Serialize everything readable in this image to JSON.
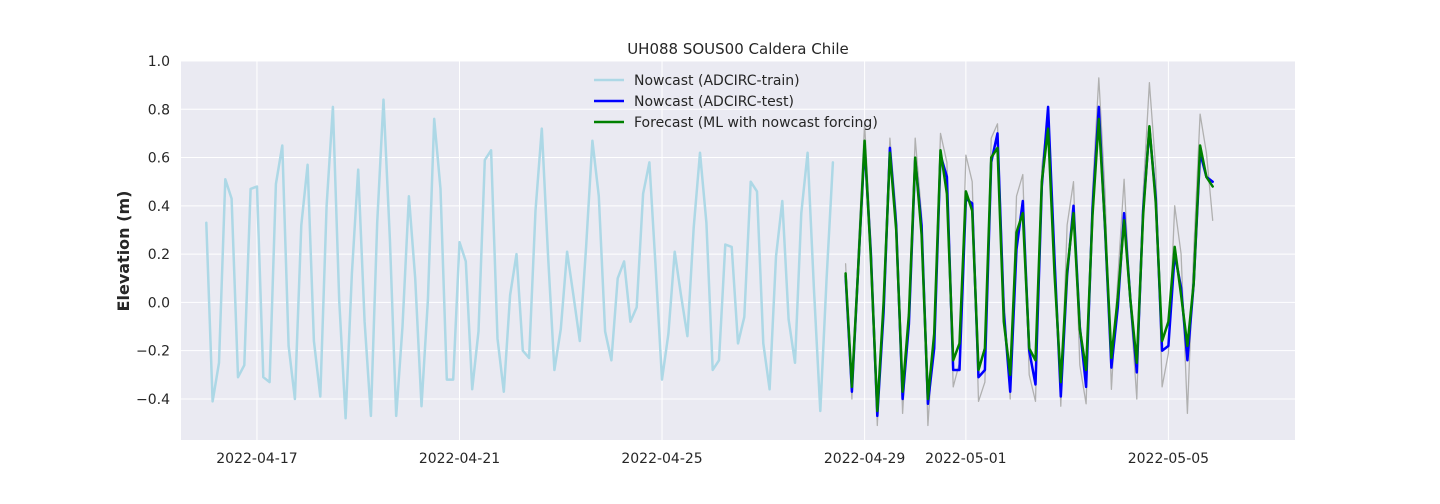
{
  "chart_data": {
    "type": "line",
    "title": "UH088 SOUS00 Caldera Chile",
    "xlabel": "",
    "ylabel": "Elevation (m)",
    "xlim": [
      "2022-04-15T12:00",
      "2022-05-07T12:00"
    ],
    "ylim": [
      -0.57,
      1.0
    ],
    "x_tick_labels": [
      "2022-04-17",
      "2022-04-21",
      "2022-04-25",
      "2022-04-29",
      "2022-05-01",
      "2022-05-05"
    ],
    "y_tick_labels": [
      "−0.4",
      "−0.2",
      "0.0",
      "0.2",
      "0.4",
      "0.6",
      "0.8",
      "1.0"
    ],
    "grid": true,
    "legend_position": "top-center",
    "series": [
      {
        "name": "Nowcast (ADCIRC-train)",
        "color": "#add8e6",
        "in_legend": true,
        "x": [
          "2022-04-16T00:00",
          "2022-04-16T03:00",
          "2022-04-16T06:00",
          "2022-04-16T09:00",
          "2022-04-16T12:00",
          "2022-04-16T15:00",
          "2022-04-16T18:00",
          "2022-04-16T21:00",
          "2022-04-17T00:00",
          "2022-04-17T03:00",
          "2022-04-17T06:00",
          "2022-04-17T09:00",
          "2022-04-17T12:00",
          "2022-04-17T15:00",
          "2022-04-17T18:00",
          "2022-04-17T21:00",
          "2022-04-18T00:00",
          "2022-04-18T03:00",
          "2022-04-18T06:00",
          "2022-04-18T09:00",
          "2022-04-18T12:00",
          "2022-04-18T15:00",
          "2022-04-18T18:00",
          "2022-04-18T21:00",
          "2022-04-19T00:00",
          "2022-04-19T03:00",
          "2022-04-19T06:00",
          "2022-04-19T09:00",
          "2022-04-19T12:00",
          "2022-04-19T15:00",
          "2022-04-19T18:00",
          "2022-04-19T21:00",
          "2022-04-20T00:00",
          "2022-04-20T03:00",
          "2022-04-20T06:00",
          "2022-04-20T09:00",
          "2022-04-20T12:00",
          "2022-04-20T15:00",
          "2022-04-20T18:00",
          "2022-04-20T21:00",
          "2022-04-21T00:00",
          "2022-04-21T03:00",
          "2022-04-21T06:00",
          "2022-04-21T09:00",
          "2022-04-21T12:00",
          "2022-04-21T15:00",
          "2022-04-21T18:00",
          "2022-04-21T21:00",
          "2022-04-22T00:00",
          "2022-04-22T03:00",
          "2022-04-22T06:00",
          "2022-04-22T09:00",
          "2022-04-22T12:00",
          "2022-04-22T15:00",
          "2022-04-22T18:00",
          "2022-04-22T21:00",
          "2022-04-23T00:00",
          "2022-04-23T03:00",
          "2022-04-23T06:00",
          "2022-04-23T09:00",
          "2022-04-23T12:00",
          "2022-04-23T15:00",
          "2022-04-23T18:00",
          "2022-04-23T21:00",
          "2022-04-24T00:00",
          "2022-04-24T03:00",
          "2022-04-24T06:00",
          "2022-04-24T09:00",
          "2022-04-24T12:00",
          "2022-04-24T15:00",
          "2022-04-24T18:00",
          "2022-04-24T21:00",
          "2022-04-25T00:00",
          "2022-04-25T03:00",
          "2022-04-25T06:00",
          "2022-04-25T09:00",
          "2022-04-25T12:00",
          "2022-04-25T15:00",
          "2022-04-25T18:00",
          "2022-04-25T21:00",
          "2022-04-26T00:00",
          "2022-04-26T03:00",
          "2022-04-26T06:00",
          "2022-04-26T09:00",
          "2022-04-26T12:00",
          "2022-04-26T15:00",
          "2022-04-26T18:00",
          "2022-04-26T21:00",
          "2022-04-27T00:00",
          "2022-04-27T03:00",
          "2022-04-27T06:00",
          "2022-04-27T09:00",
          "2022-04-27T12:00",
          "2022-04-27T15:00",
          "2022-04-27T18:00",
          "2022-04-27T21:00",
          "2022-04-28T00:00",
          "2022-04-28T03:00",
          "2022-04-28T06:00",
          "2022-04-28T09:00"
        ],
        "y": [
          0.33,
          -0.41,
          -0.25,
          0.51,
          0.43,
          -0.31,
          -0.26,
          0.47,
          0.48,
          -0.31,
          -0.33,
          0.49,
          0.65,
          -0.18,
          -0.4,
          0.32,
          0.57,
          -0.16,
          -0.39,
          0.4,
          0.81,
          0.01,
          -0.48,
          0.12,
          0.55,
          -0.08,
          -0.47,
          0.33,
          0.84,
          0.26,
          -0.47,
          -0.1,
          0.44,
          0.1,
          -0.43,
          0.01,
          0.76,
          0.47,
          -0.32,
          -0.32,
          0.25,
          0.17,
          -0.36,
          -0.12,
          0.59,
          0.63,
          -0.15,
          -0.37,
          0.03,
          0.2,
          -0.2,
          -0.23,
          0.38,
          0.72,
          0.19,
          -0.28,
          -0.11,
          0.21,
          0.03,
          -0.16,
          0.23,
          0.67,
          0.44,
          -0.12,
          -0.24,
          0.1,
          0.17,
          -0.08,
          -0.02,
          0.45,
          0.58,
          0.14,
          -0.32,
          -0.13,
          0.21,
          0.03,
          -0.14,
          0.31,
          0.62,
          0.33,
          -0.28,
          -0.24,
          0.24,
          0.23,
          -0.17,
          -0.06,
          0.5,
          0.46,
          -0.17,
          -0.36,
          0.19,
          0.42,
          -0.07,
          -0.25,
          0.37,
          0.62,
          0.05,
          -0.45,
          0.1,
          0.58
        ]
      },
      {
        "name": "Nowcast (ADCIRC-test)",
        "color": "#0000ff",
        "in_legend": true,
        "x": [
          "2022-04-28T15:00",
          "2022-04-28T18:00",
          "2022-04-28T21:00",
          "2022-04-29T00:00",
          "2022-04-29T03:00",
          "2022-04-29T06:00",
          "2022-04-29T09:00",
          "2022-04-29T12:00",
          "2022-04-29T15:00",
          "2022-04-29T18:00",
          "2022-04-29T21:00",
          "2022-04-30T00:00",
          "2022-04-30T03:00",
          "2022-04-30T06:00",
          "2022-04-30T09:00",
          "2022-04-30T12:00",
          "2022-04-30T15:00",
          "2022-04-30T18:00",
          "2022-04-30T21:00",
          "2022-05-01T00:00",
          "2022-05-01T03:00",
          "2022-05-01T06:00",
          "2022-05-01T09:00",
          "2022-05-01T12:00",
          "2022-05-01T15:00",
          "2022-05-01T18:00",
          "2022-05-01T21:00",
          "2022-05-02T00:00",
          "2022-05-02T03:00",
          "2022-05-02T06:00",
          "2022-05-02T09:00",
          "2022-05-02T12:00",
          "2022-05-02T15:00",
          "2022-05-02T18:00",
          "2022-05-02T21:00",
          "2022-05-03T00:00",
          "2022-05-03T03:00",
          "2022-05-03T06:00",
          "2022-05-03T09:00",
          "2022-05-03T12:00",
          "2022-05-03T15:00",
          "2022-05-03T18:00",
          "2022-05-03T21:00",
          "2022-05-04T00:00",
          "2022-05-04T03:00",
          "2022-05-04T06:00",
          "2022-05-04T09:00",
          "2022-05-04T12:00",
          "2022-05-04T15:00",
          "2022-05-04T18:00",
          "2022-05-04T21:00",
          "2022-05-05T00:00",
          "2022-05-05T03:00",
          "2022-05-05T06:00",
          "2022-05-05T09:00",
          "2022-05-05T12:00",
          "2022-05-05T15:00",
          "2022-05-05T18:00",
          "2022-05-05T21:00"
        ],
        "y": [
          0.11,
          -0.37,
          0.15,
          0.65,
          0.2,
          -0.47,
          -0.04,
          0.64,
          0.32,
          -0.4,
          -0.09,
          0.59,
          0.32,
          -0.42,
          -0.19,
          0.61,
          0.52,
          -0.28,
          -0.28,
          0.43,
          0.41,
          -0.31,
          -0.28,
          0.58,
          0.7,
          -0.04,
          -0.37,
          0.22,
          0.42,
          -0.2,
          -0.34,
          0.48,
          0.81,
          0.18,
          -0.39,
          0.11,
          0.4,
          -0.1,
          -0.35,
          0.39,
          0.81,
          0.3,
          -0.27,
          -0.02,
          0.37,
          0.01,
          -0.29,
          0.38,
          0.72,
          0.43,
          -0.2,
          -0.18,
          0.2,
          0.06,
          -0.24,
          0.08,
          0.62,
          0.52,
          0.5
        ]
      },
      {
        "name": "Forecast (ML with nowcast forcing)",
        "color": "#008000",
        "in_legend": true,
        "x": [
          "2022-04-28T15:00",
          "2022-04-28T18:00",
          "2022-04-28T21:00",
          "2022-04-29T00:00",
          "2022-04-29T03:00",
          "2022-04-29T06:00",
          "2022-04-29T09:00",
          "2022-04-29T12:00",
          "2022-04-29T15:00",
          "2022-04-29T18:00",
          "2022-04-29T21:00",
          "2022-04-30T00:00",
          "2022-04-30T03:00",
          "2022-04-30T06:00",
          "2022-04-30T09:00",
          "2022-04-30T12:00",
          "2022-04-30T15:00",
          "2022-04-30T18:00",
          "2022-04-30T21:00",
          "2022-05-01T00:00",
          "2022-05-01T03:00",
          "2022-05-01T06:00",
          "2022-05-01T09:00",
          "2022-05-01T12:00",
          "2022-05-01T15:00",
          "2022-05-01T18:00",
          "2022-05-01T21:00",
          "2022-05-02T00:00",
          "2022-05-02T03:00",
          "2022-05-02T06:00",
          "2022-05-02T09:00",
          "2022-05-02T12:00",
          "2022-05-02T15:00",
          "2022-05-02T18:00",
          "2022-05-02T21:00",
          "2022-05-03T00:00",
          "2022-05-03T03:00",
          "2022-05-03T06:00",
          "2022-05-03T09:00",
          "2022-05-03T12:00",
          "2022-05-03T15:00",
          "2022-05-03T18:00",
          "2022-05-03T21:00",
          "2022-05-04T00:00",
          "2022-05-04T03:00",
          "2022-05-04T06:00",
          "2022-05-04T09:00",
          "2022-05-04T12:00",
          "2022-05-04T15:00",
          "2022-05-04T18:00",
          "2022-05-04T21:00",
          "2022-05-05T00:00",
          "2022-05-05T03:00",
          "2022-05-05T06:00",
          "2022-05-05T09:00",
          "2022-05-05T12:00",
          "2022-05-05T15:00",
          "2022-05-05T18:00",
          "2022-05-05T21:00"
        ],
        "y": [
          0.12,
          -0.35,
          0.15,
          0.67,
          0.18,
          -0.45,
          0.0,
          0.62,
          0.3,
          -0.37,
          -0.05,
          0.6,
          0.28,
          -0.4,
          -0.13,
          0.63,
          0.45,
          -0.24,
          -0.17,
          0.46,
          0.38,
          -0.28,
          -0.19,
          0.6,
          0.64,
          -0.08,
          -0.3,
          0.29,
          0.37,
          -0.19,
          -0.24,
          0.5,
          0.72,
          0.12,
          -0.33,
          0.13,
          0.37,
          -0.11,
          -0.28,
          0.36,
          0.76,
          0.31,
          -0.23,
          0.02,
          0.34,
          0.01,
          -0.25,
          0.36,
          0.73,
          0.41,
          -0.16,
          -0.08,
          0.23,
          0.03,
          -0.18,
          0.08,
          0.65,
          0.52,
          0.48
        ]
      },
      {
        "name": "",
        "color": "#b0b0b0",
        "in_legend": false,
        "x": [
          "2022-04-28T15:00",
          "2022-04-28T18:00",
          "2022-04-28T21:00",
          "2022-04-29T00:00",
          "2022-04-29T03:00",
          "2022-04-29T06:00",
          "2022-04-29T09:00",
          "2022-04-29T12:00",
          "2022-04-29T15:00",
          "2022-04-29T18:00",
          "2022-04-29T21:00",
          "2022-04-30T00:00",
          "2022-04-30T03:00",
          "2022-04-30T06:00",
          "2022-04-30T09:00",
          "2022-04-30T12:00",
          "2022-04-30T15:00",
          "2022-04-30T18:00",
          "2022-04-30T21:00",
          "2022-05-01T00:00",
          "2022-05-01T03:00",
          "2022-05-01T06:00",
          "2022-05-01T09:00",
          "2022-05-01T12:00",
          "2022-05-01T15:00",
          "2022-05-01T18:00",
          "2022-05-01T21:00",
          "2022-05-02T00:00",
          "2022-05-02T03:00",
          "2022-05-02T06:00",
          "2022-05-02T09:00",
          "2022-05-02T12:00",
          "2022-05-02T15:00",
          "2022-05-02T18:00",
          "2022-05-02T21:00",
          "2022-05-03T00:00",
          "2022-05-03T03:00",
          "2022-05-03T06:00",
          "2022-05-03T09:00",
          "2022-05-03T12:00",
          "2022-05-03T15:00",
          "2022-05-03T18:00",
          "2022-05-03T21:00",
          "2022-05-04T00:00",
          "2022-05-04T03:00",
          "2022-05-04T06:00",
          "2022-05-04T09:00",
          "2022-05-04T12:00",
          "2022-05-04T15:00",
          "2022-05-04T18:00",
          "2022-05-04T21:00",
          "2022-05-05T00:00",
          "2022-05-05T03:00",
          "2022-05-05T06:00",
          "2022-05-05T09:00",
          "2022-05-05T12:00",
          "2022-05-05T15:00",
          "2022-05-05T18:00",
          "2022-05-05T21:00"
        ],
        "y": [
          0.16,
          -0.4,
          0.22,
          0.74,
          0.25,
          -0.51,
          0.03,
          0.68,
          0.37,
          -0.46,
          -0.02,
          0.68,
          0.36,
          -0.51,
          -0.1,
          0.7,
          0.58,
          -0.35,
          -0.25,
          0.61,
          0.5,
          -0.41,
          -0.33,
          0.68,
          0.74,
          0.03,
          -0.4,
          0.44,
          0.53,
          -0.3,
          -0.41,
          0.56,
          0.78,
          0.23,
          -0.43,
          0.32,
          0.5,
          -0.26,
          -0.42,
          0.46,
          0.93,
          0.45,
          -0.36,
          0.1,
          0.51,
          -0.01,
          -0.4,
          0.45,
          0.91,
          0.55,
          -0.35,
          -0.21,
          0.4,
          0.2,
          -0.46,
          0.21,
          0.78,
          0.62,
          0.34
        ]
      }
    ]
  }
}
